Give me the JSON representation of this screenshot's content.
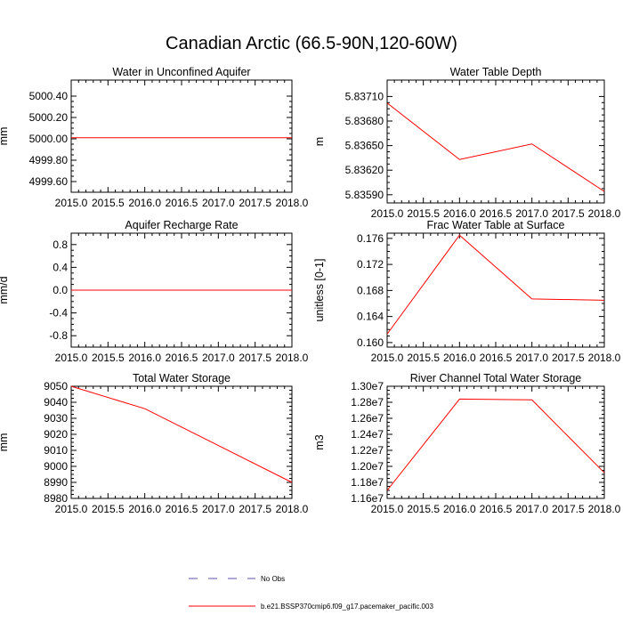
{
  "page_title": "Canadian Arctic (66.5-90N,120-60W)",
  "legend": {
    "items": [
      {
        "label": "No Obs",
        "color": "#5a4fa8",
        "style": "dashed"
      },
      {
        "label": "b.e21.BSSP370cmip6.f09_g17.pacemaker_pacific.003",
        "color": "#ff0000",
        "style": "solid"
      }
    ]
  },
  "chart_data": [
    {
      "type": "line",
      "title": "Water in Unconfined Aquifer",
      "ylabel": "mm",
      "xlim": [
        2015.0,
        2018.0
      ],
      "ylim": [
        4999.5,
        5000.55
      ],
      "xticks": [
        2015.0,
        2015.5,
        2016.0,
        2016.5,
        2017.0,
        2017.5,
        2018.0
      ],
      "xtick_labels": [
        "2015.0",
        "2015.5",
        "2016.0",
        "2016.5",
        "2017.0",
        "2017.5",
        "2018.0"
      ],
      "yticks": [
        4999.6,
        4999.8,
        5000.0,
        5000.2,
        5000.4
      ],
      "ytick_labels": [
        "4999.60",
        "4999.80",
        "5000.00",
        "5000.20",
        "5000.40"
      ],
      "series": [
        {
          "color": "#ff0000",
          "x": [
            2015,
            2016,
            2017,
            2018
          ],
          "y": [
            5000.01,
            5000.01,
            5000.01,
            5000.01
          ]
        }
      ]
    },
    {
      "type": "line",
      "title": "Water Table Depth",
      "ylabel": "m",
      "xlim": [
        2015.0,
        2018.0
      ],
      "ylim": [
        5.8358,
        5.8373
      ],
      "xticks": [
        2015.0,
        2015.5,
        2016.0,
        2016.5,
        2017.0,
        2017.5,
        2018.0
      ],
      "xtick_labels": [
        "2015.0",
        "2015.5",
        "2016.0",
        "2016.5",
        "2017.0",
        "2017.5",
        "2018.0"
      ],
      "yticks": [
        5.8359,
        5.8362,
        5.8365,
        5.8368,
        5.8371
      ],
      "ytick_labels": [
        "5.83590",
        "5.83620",
        "5.83650",
        "5.83680",
        "5.83710"
      ],
      "series": [
        {
          "color": "#ff0000",
          "x": [
            2015,
            2016,
            2017,
            2018
          ],
          "y": [
            5.83702,
            5.83633,
            5.83652,
            5.83594
          ]
        }
      ]
    },
    {
      "type": "line",
      "title": "Aquifer Recharge Rate",
      "ylabel": "mm/d",
      "xlim": [
        2015.0,
        2018.0
      ],
      "ylim": [
        -1.0,
        1.0
      ],
      "xticks": [
        2015.0,
        2015.5,
        2016.0,
        2016.5,
        2017.0,
        2017.5,
        2018.0
      ],
      "xtick_labels": [
        "2015.0",
        "2015.5",
        "2016.0",
        "2016.5",
        "2017.0",
        "2017.5",
        "2018.0"
      ],
      "yticks": [
        -0.8,
        -0.4,
        0.0,
        0.4,
        0.8
      ],
      "ytick_labels": [
        "-0.8",
        "-0.4",
        "0.0",
        "0.4",
        "0.8"
      ],
      "series": [
        {
          "color": "#ff0000",
          "x": [
            2015,
            2016,
            2017,
            2018
          ],
          "y": [
            0.0,
            0.0,
            0.0,
            0.0
          ]
        }
      ]
    },
    {
      "type": "line",
      "title": "Frac Water Table at Surface",
      "ylabel": "unitless [0-1]",
      "xlim": [
        2015.0,
        2018.0
      ],
      "ylim": [
        0.1593,
        0.1768
      ],
      "xticks": [
        2015.0,
        2015.5,
        2016.0,
        2016.5,
        2017.0,
        2017.5,
        2018.0
      ],
      "xtick_labels": [
        "2015.0",
        "2015.5",
        "2016.0",
        "2016.5",
        "2017.0",
        "2017.5",
        "2018.0"
      ],
      "yticks": [
        0.16,
        0.164,
        0.168,
        0.172,
        0.176
      ],
      "ytick_labels": [
        "0.160",
        "0.164",
        "0.168",
        "0.172",
        "0.176"
      ],
      "series": [
        {
          "color": "#ff0000",
          "x": [
            2015,
            2016,
            2017,
            2018
          ],
          "y": [
            0.1613,
            0.1765,
            0.1667,
            0.1665
          ]
        }
      ]
    },
    {
      "type": "line",
      "title": "Total Water Storage",
      "ylabel": "mm",
      "xlim": [
        2015.0,
        2018.0
      ],
      "ylim": [
        8980,
        9050
      ],
      "xticks": [
        2015.0,
        2015.5,
        2016.0,
        2016.5,
        2017.0,
        2017.5,
        2018.0
      ],
      "xtick_labels": [
        "2015.0",
        "2015.5",
        "2016.0",
        "2016.5",
        "2017.0",
        "2017.5",
        "2018.0"
      ],
      "yticks": [
        8980,
        8990,
        9000,
        9010,
        9020,
        9030,
        9040,
        9050
      ],
      "ytick_labels": [
        "8980",
        "8990",
        "9000",
        "9010",
        "9020",
        "9030",
        "9040",
        "9050"
      ],
      "series": [
        {
          "color": "#ff0000",
          "x": [
            2015,
            2016,
            2017,
            2018
          ],
          "y": [
            9050,
            9036,
            9013,
            8990
          ]
        }
      ]
    },
    {
      "type": "line",
      "title": "River Channel Total Water Storage",
      "ylabel": "m3",
      "xlim": [
        2015.0,
        2018.0
      ],
      "ylim": [
        11600000,
        13000000
      ],
      "xticks": [
        2015.0,
        2015.5,
        2016.0,
        2016.5,
        2017.0,
        2017.5,
        2018.0
      ],
      "xtick_labels": [
        "2015.0",
        "2015.5",
        "2016.0",
        "2016.5",
        "2017.0",
        "2017.5",
        "2018.0"
      ],
      "yticks": [
        11600000,
        11800000,
        12000000,
        12200000,
        12400000,
        12600000,
        12800000,
        13000000
      ],
      "ytick_labels": [
        "1.16e7",
        "1.18e7",
        "1.20e7",
        "1.22e7",
        "1.24e7",
        "1.26e7",
        "1.28e7",
        "1.30e7"
      ],
      "series": [
        {
          "color": "#ff0000",
          "x": [
            2015,
            2016,
            2017,
            2018
          ],
          "y": [
            11700000,
            12840000,
            12830000,
            11920000
          ]
        }
      ]
    }
  ]
}
